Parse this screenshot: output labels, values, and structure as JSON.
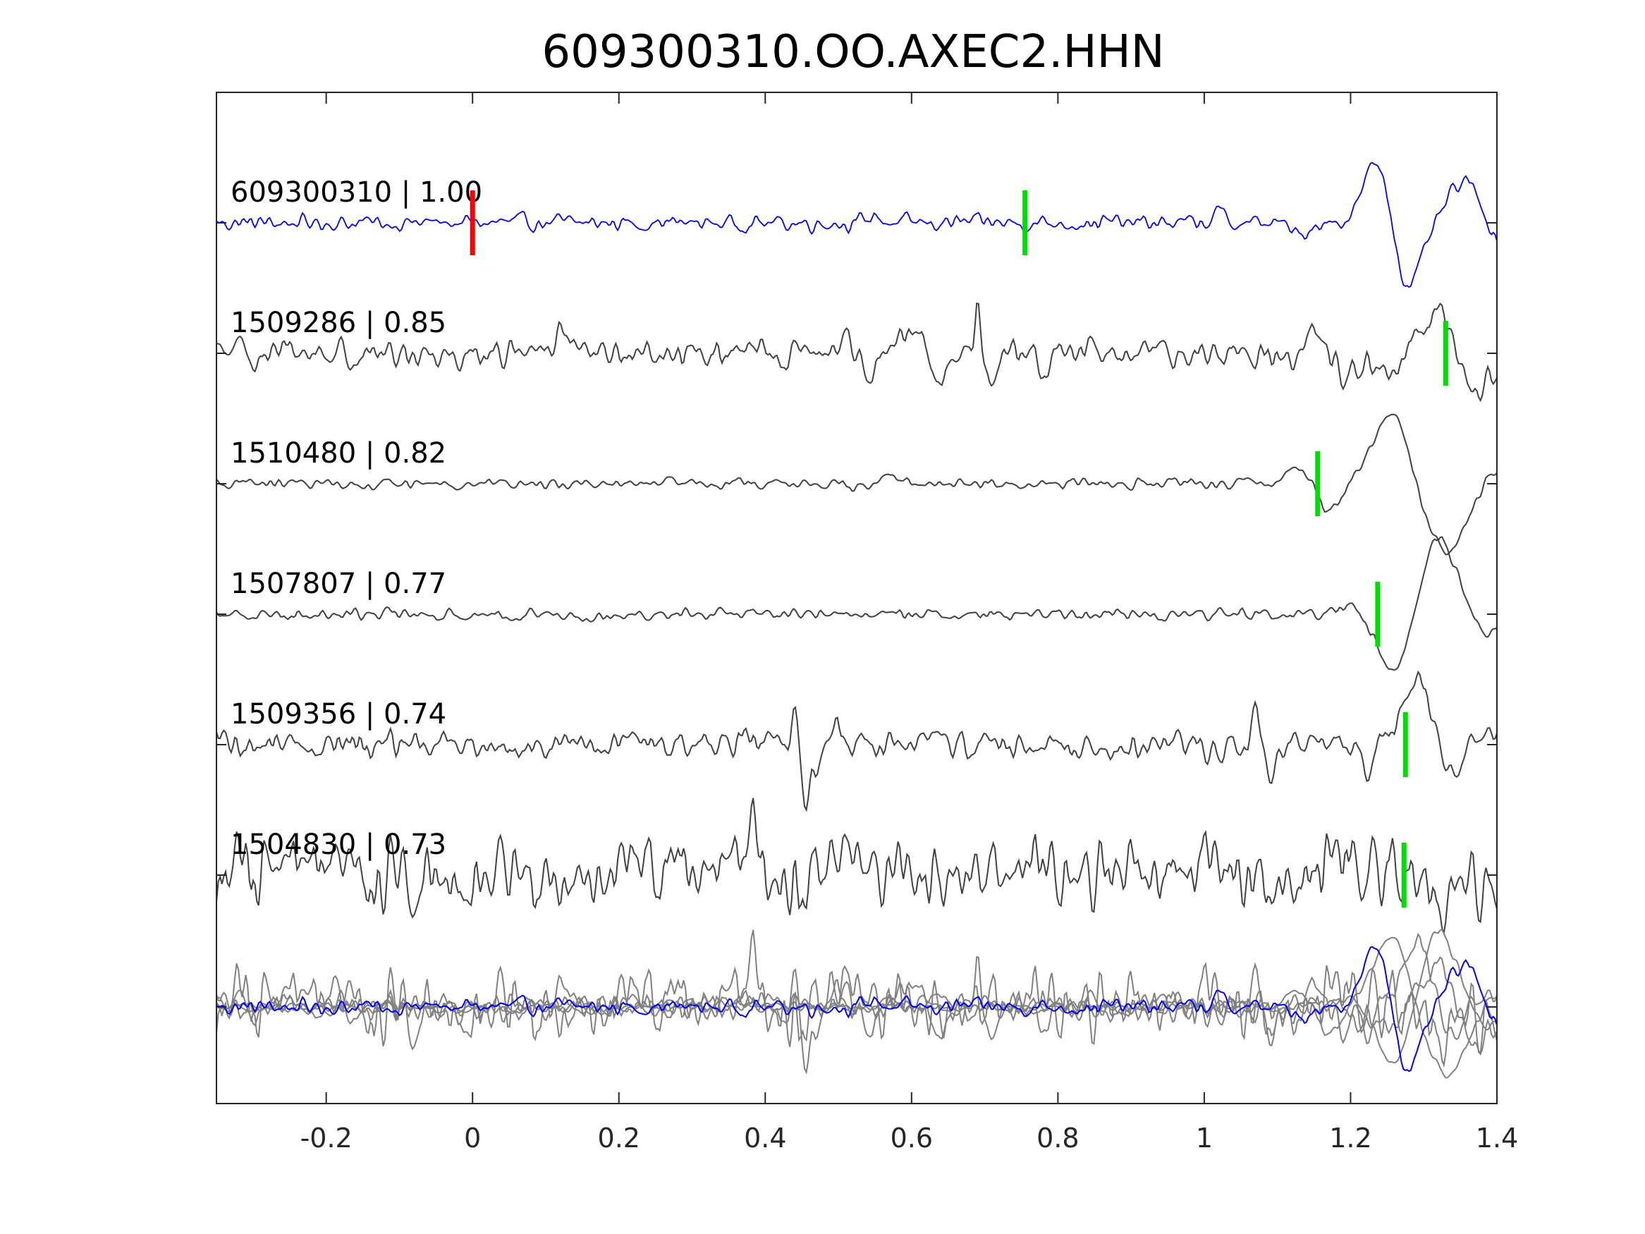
{
  "chart_data": {
    "type": "line",
    "title": "609300310.OO.AXEC2.HHN",
    "xlabel": "",
    "ylabel": "",
    "xlim": [
      -0.35,
      1.4
    ],
    "xticks": [
      -0.2,
      0,
      0.2,
      0.4,
      0.6,
      0.8,
      1,
      1.2,
      1.4
    ],
    "xtick_labels": [
      "-0.2",
      "0",
      "0.2",
      "0.4",
      "0.6",
      "0.8",
      "1",
      "1.2",
      "1.4"
    ],
    "grid": false,
    "colors": {
      "template": "#0000ff",
      "trace": "#404040",
      "overlay": "#808080",
      "pick_red": "#ff0000",
      "pick_green": "#00dd00",
      "axis": "#262626"
    },
    "series": [
      {
        "name": "609300310 | 1.00",
        "color": "#0000ff",
        "red_pick": 0.0,
        "green_pick": 0.755,
        "noise_amp": 0.1,
        "events": [
          {
            "t": 1.24,
            "a": 1.05,
            "w": 0.028
          },
          {
            "t": 1.275,
            "a": -1.1,
            "w": 0.028
          },
          {
            "t": 1.355,
            "a": 0.6,
            "w": 0.03
          },
          {
            "t": 1.405,
            "a": -0.3,
            "w": 0.02
          },
          {
            "t": 0.55,
            "a": 0.12,
            "w": 0.01
          },
          {
            "t": 1.02,
            "a": 0.15,
            "w": 0.01
          },
          {
            "t": 1.13,
            "a": -0.2,
            "w": 0.015
          }
        ]
      },
      {
        "name": "1509286 | 0.85",
        "color": "#404040",
        "green_pick": 1.33,
        "noise_amp": 0.18,
        "events": [
          {
            "t": 0.12,
            "a": 0.45,
            "w": 0.006
          },
          {
            "t": 0.52,
            "a": 0.3,
            "w": 0.02
          },
          {
            "t": 0.54,
            "a": -0.45,
            "w": 0.015
          },
          {
            "t": 0.6,
            "a": 0.3,
            "w": 0.02
          },
          {
            "t": 0.64,
            "a": -0.4,
            "w": 0.012
          },
          {
            "t": 0.69,
            "a": 0.9,
            "w": 0.005
          },
          {
            "t": 0.71,
            "a": -0.3,
            "w": 0.008
          },
          {
            "t": 0.78,
            "a": -0.3,
            "w": 0.01
          },
          {
            "t": 1.15,
            "a": 0.35,
            "w": 0.01
          },
          {
            "t": 1.2,
            "a": -0.3,
            "w": 0.02
          },
          {
            "t": 1.25,
            "a": -0.35,
            "w": 0.025
          },
          {
            "t": 1.32,
            "a": 0.55,
            "w": 0.03
          },
          {
            "t": 1.37,
            "a": -0.6,
            "w": 0.025
          }
        ]
      },
      {
        "name": "1510480 | 0.82",
        "color": "#404040",
        "green_pick": 1.155,
        "noise_amp": 0.06,
        "events": [
          {
            "t": 0.52,
            "a": -0.1,
            "w": 0.01
          },
          {
            "t": 0.57,
            "a": 0.15,
            "w": 0.012
          },
          {
            "t": 1.13,
            "a": 0.25,
            "w": 0.025
          },
          {
            "t": 1.17,
            "a": -0.45,
            "w": 0.02
          },
          {
            "t": 1.255,
            "a": 1.05,
            "w": 0.035
          },
          {
            "t": 1.33,
            "a": -1.0,
            "w": 0.04
          },
          {
            "t": 1.4,
            "a": 0.25,
            "w": 0.03
          }
        ]
      },
      {
        "name": "1507807 | 0.77",
        "color": "#404040",
        "green_pick": 1.237,
        "noise_amp": 0.07,
        "events": [
          {
            "t": 1.2,
            "a": 0.1,
            "w": 0.02
          },
          {
            "t": 1.26,
            "a": -0.9,
            "w": 0.03
          },
          {
            "t": 1.32,
            "a": 1.15,
            "w": 0.035
          },
          {
            "t": 1.385,
            "a": -0.28,
            "w": 0.03
          }
        ]
      },
      {
        "name": "1509356 | 0.74",
        "color": "#404040",
        "green_pick": 1.275,
        "noise_amp": 0.18,
        "events": [
          {
            "t": 0.44,
            "a": 0.5,
            "w": 0.006
          },
          {
            "t": 0.455,
            "a": -0.7,
            "w": 0.006
          },
          {
            "t": 0.47,
            "a": -0.35,
            "w": 0.01
          },
          {
            "t": 0.5,
            "a": 0.3,
            "w": 0.01
          },
          {
            "t": 1.07,
            "a": 0.55,
            "w": 0.007
          },
          {
            "t": 1.09,
            "a": -0.4,
            "w": 0.01
          },
          {
            "t": 1.22,
            "a": -0.4,
            "w": 0.015
          },
          {
            "t": 1.28,
            "a": 0.55,
            "w": 0.02
          },
          {
            "t": 1.3,
            "a": 0.65,
            "w": 0.02
          },
          {
            "t": 1.34,
            "a": -0.55,
            "w": 0.02
          },
          {
            "t": 1.37,
            "a": 0.3,
            "w": 0.02
          }
        ]
      },
      {
        "name": "1504830 | 0.73",
        "color": "#404040",
        "green_pick": 1.273,
        "noise_amp": 0.45,
        "events": [
          {
            "t": 0.23,
            "a": 0.4,
            "w": 0.02
          },
          {
            "t": 0.38,
            "a": 0.5,
            "w": 0.02
          },
          {
            "t": 0.5,
            "a": 0.5,
            "w": 0.02
          },
          {
            "t": 0.77,
            "a": 0.4,
            "w": 0.02
          },
          {
            "t": 1.28,
            "a": 0.35,
            "w": 0.02
          },
          {
            "t": 1.31,
            "a": -0.4,
            "w": 0.02
          }
        ]
      }
    ]
  }
}
